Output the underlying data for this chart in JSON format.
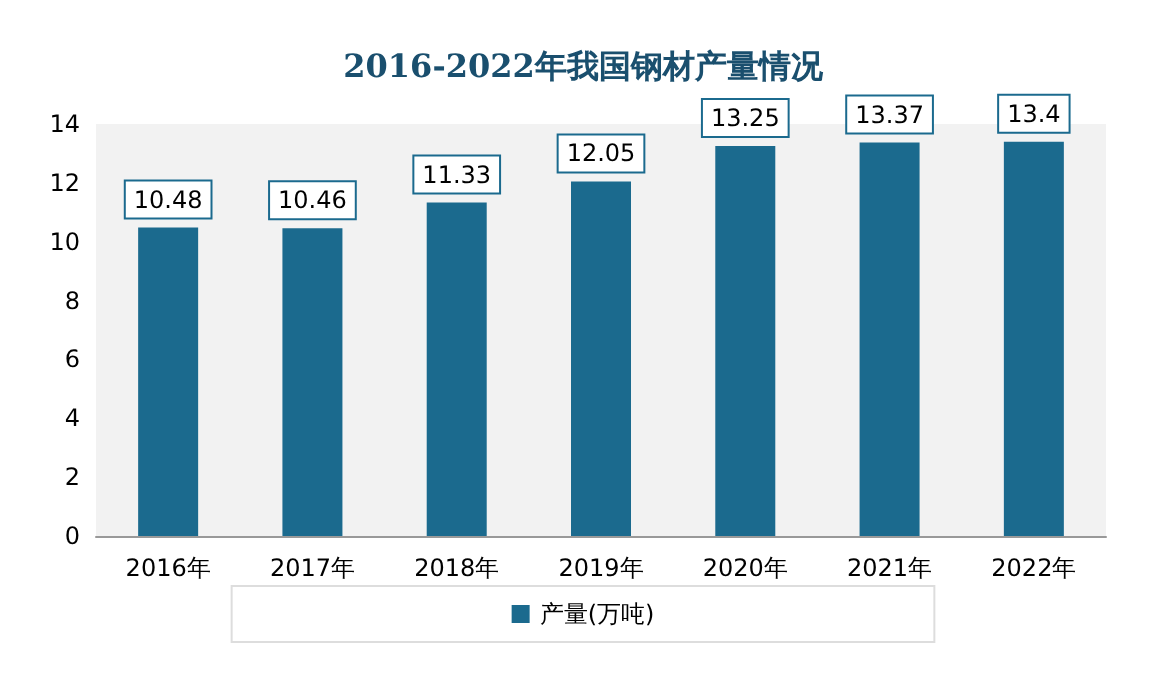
{
  "chart_data": {
    "type": "bar",
    "title": "2016-2022年我国钢材产量情况",
    "categories": [
      "2016年",
      "2017年",
      "2018年",
      "2019年",
      "2020年",
      "2021年",
      "2022年"
    ],
    "series": [
      {
        "name": "产量(万吨)",
        "color": "#1b6a8e",
        "values": [
          10.48,
          10.46,
          11.33,
          12.05,
          13.25,
          13.37,
          13.4
        ]
      }
    ],
    "ylim": [
      0,
      14
    ],
    "yticks": [
      0,
      2,
      4,
      6,
      8,
      10,
      12,
      14
    ],
    "grid": false,
    "legend": "bottom",
    "data_labels": true
  }
}
